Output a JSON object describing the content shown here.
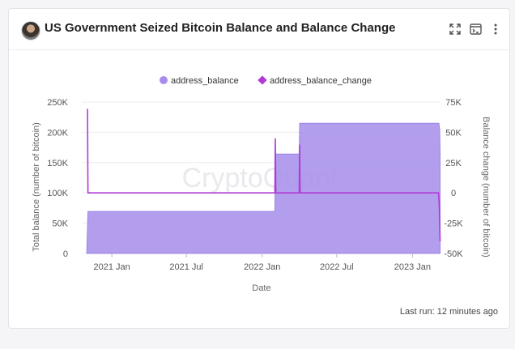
{
  "header": {
    "title": "US Government Seized Bitcoin Balance and Balance Change",
    "actions": [
      "expand-icon",
      "terminal-icon",
      "more-vertical-icon"
    ]
  },
  "watermark": "CryptoQuant",
  "footer": {
    "last_run": "Last run: 12 minutes ago"
  },
  "colors": {
    "balance_fill": "#a68deb",
    "balance_stroke": "#9d84e6",
    "change_line": "#b03ad6",
    "legend_balance": "#a68deb",
    "legend_change": "#b03ad6"
  },
  "chart_data": {
    "type": "area",
    "xlabel": "Date",
    "ylabel": "Total balance (number of bitcoin)",
    "y2label": "Balance change (number of bitcoin)",
    "x_ticks": [
      "2021 Jan",
      "2021 Jul",
      "2022 Jan",
      "2022 Jul",
      "2023 Jan"
    ],
    "ylim": [
      0,
      250000
    ],
    "y_ticks": [
      "0",
      "50K",
      "100K",
      "150K",
      "200K",
      "250K"
    ],
    "y2lim": [
      -50000,
      75000
    ],
    "y2_ticks": [
      "-50K",
      "-25K",
      "0",
      "25K",
      "50K",
      "75K"
    ],
    "legend": [
      "address_balance",
      "address_balance_change"
    ],
    "legend_position": "top-center",
    "grid": true,
    "series": [
      {
        "name": "address_balance",
        "type": "area",
        "axis": "left",
        "points": [
          [
            "2020-11-01",
            0
          ],
          [
            "2020-11-04",
            69370
          ],
          [
            "2022-02-01",
            69370
          ],
          [
            "2022-02-02",
            164000
          ],
          [
            "2022-04-01",
            164000
          ],
          [
            "2022-04-02",
            215000
          ],
          [
            "2023-03-06",
            215000
          ],
          [
            "2023-03-08",
            205000
          ],
          [
            "2023-03-09",
            165000
          ]
        ]
      },
      {
        "name": "address_balance_change",
        "type": "line",
        "axis": "right",
        "points": [
          [
            "2020-11-03",
            69370
          ],
          [
            "2020-11-04",
            0
          ],
          [
            "2022-02-01",
            0
          ],
          [
            "2022-02-02",
            45000
          ],
          [
            "2022-02-03",
            0
          ],
          [
            "2022-04-01",
            0
          ],
          [
            "2022-04-02",
            40000
          ],
          [
            "2022-04-03",
            0
          ],
          [
            "2023-03-05",
            0
          ],
          [
            "2023-03-07",
            -10000
          ],
          [
            "2023-03-09",
            -40000
          ]
        ]
      }
    ]
  }
}
